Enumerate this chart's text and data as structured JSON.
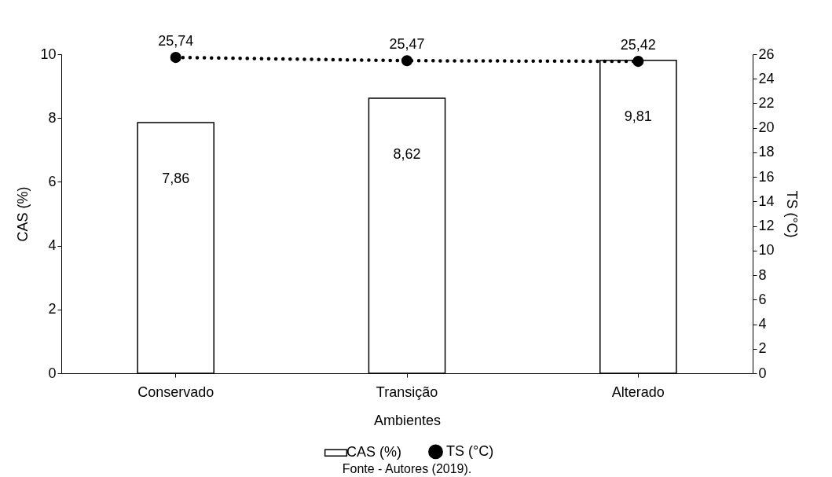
{
  "chart_data": {
    "type": "bar",
    "xlabel": "Ambientes",
    "ylabel": "CAS (%)",
    "y2label": "TS (°C)",
    "categories": [
      "Conservado",
      "Transição",
      "Alterado"
    ],
    "series": [
      {
        "name": "CAS (%)",
        "color": "#ffffff",
        "values": [
          7.86,
          8.62,
          9.81
        ],
        "value_labels": [
          "7,86",
          "8,62",
          "9,81"
        ]
      },
      {
        "name": "TS (°C)",
        "type": "line",
        "axis": "y2",
        "color": "#000000",
        "values": [
          25.74,
          25.47,
          25.42
        ],
        "value_labels": [
          "25,74",
          "25,47",
          "25,42"
        ]
      }
    ],
    "marker": "circle",
    "line_style": "dotted",
    "ylim": [
      0,
      10
    ],
    "yticks": [
      0,
      2,
      4,
      6,
      8,
      10
    ],
    "y2lim": [
      0,
      26
    ],
    "y2ticks": [
      0,
      2,
      4,
      6,
      8,
      10,
      12,
      14,
      16,
      18,
      20,
      22,
      24,
      26
    ],
    "grid": false,
    "legend": "bottom",
    "annotations": [
      "Fonte - Autores (2019)."
    ]
  }
}
